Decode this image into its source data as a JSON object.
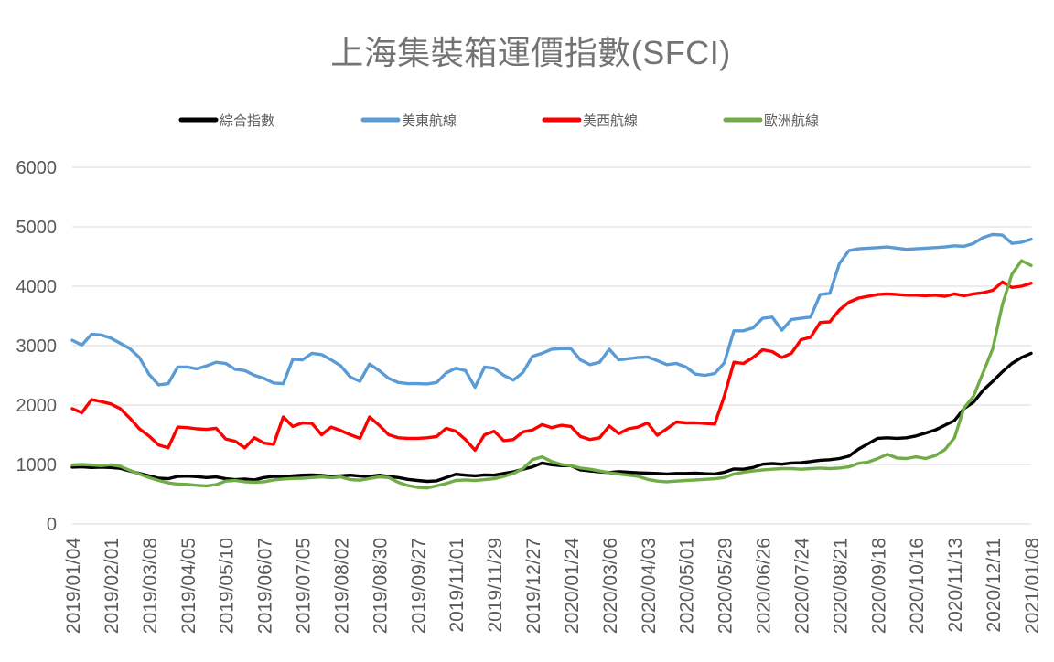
{
  "page": {
    "background": "#FFFFFF"
  },
  "chart_data": {
    "type": "line",
    "title": "上海集裝箱運價指數(SFCI)",
    "legend_position": "top",
    "grid": "horizontal-only",
    "ylim": [
      0,
      6000
    ],
    "y_ticks": [
      0,
      1000,
      2000,
      3000,
      4000,
      5000,
      6000
    ],
    "x_tick_labels": [
      "2019/01/04",
      "2019/02/01",
      "2019/03/08",
      "2019/04/05",
      "2019/05/10",
      "2019/06/07",
      "2019/07/05",
      "2019/08/02",
      "2019/08/30",
      "2019/09/27",
      "2019/11/01",
      "2019/11/29",
      "2019/12/27",
      "2020/01/24",
      "2020/03/06",
      "2020/04/03",
      "2020/05/01",
      "2020/05/29",
      "2020/06/26",
      "2020/07/24",
      "2020/08/21",
      "2020/09/18",
      "2020/10/16",
      "2020/11/13",
      "2020/12/11",
      "2021/01/08"
    ],
    "points_per_tick_gap": 4,
    "colors": {
      "grid": "#D9D9D9",
      "axis_text": "#595959",
      "title_text": "#737373"
    },
    "series": [
      {
        "name": "綜合指數",
        "color": "#000000",
        "values": [
          955,
          960,
          950,
          955,
          950,
          935,
          890,
          850,
          810,
          770,
          760,
          800,
          805,
          795,
          780,
          790,
          760,
          745,
          755,
          740,
          780,
          800,
          795,
          810,
          820,
          825,
          815,
          800,
          810,
          820,
          805,
          800,
          820,
          800,
          780,
          750,
          730,
          715,
          725,
          780,
          835,
          820,
          810,
          825,
          820,
          850,
          875,
          920,
          960,
          1025,
          995,
          980,
          980,
          910,
          890,
          875,
          865,
          880,
          870,
          860,
          855,
          850,
          840,
          850,
          850,
          855,
          845,
          840,
          870,
          925,
          920,
          950,
          1005,
          1015,
          1005,
          1025,
          1030,
          1050,
          1070,
          1080,
          1100,
          1140,
          1260,
          1350,
          1440,
          1450,
          1440,
          1450,
          1480,
          1530,
          1580,
          1660,
          1740,
          1940,
          2050,
          2250,
          2400,
          2560,
          2700,
          2800,
          2870
        ]
      },
      {
        "name": "美東航線",
        "color": "#5B9BD5",
        "values": [
          3090,
          3010,
          3190,
          3180,
          3130,
          3040,
          2950,
          2800,
          2520,
          2340,
          2360,
          2640,
          2640,
          2610,
          2660,
          2720,
          2700,
          2600,
          2580,
          2500,
          2450,
          2370,
          2360,
          2770,
          2760,
          2870,
          2850,
          2760,
          2660,
          2470,
          2400,
          2690,
          2580,
          2450,
          2380,
          2360,
          2360,
          2355,
          2380,
          2540,
          2620,
          2580,
          2300,
          2640,
          2620,
          2500,
          2420,
          2550,
          2820,
          2870,
          2940,
          2950,
          2950,
          2760,
          2680,
          2720,
          2940,
          2760,
          2780,
          2800,
          2810,
          2750,
          2680,
          2700,
          2640,
          2520,
          2500,
          2530,
          2710,
          3250,
          3250,
          3300,
          3460,
          3480,
          3260,
          3440,
          3460,
          3480,
          3860,
          3880,
          4380,
          4600,
          4630,
          4640,
          4650,
          4660,
          4640,
          4620,
          4630,
          4640,
          4650,
          4660,
          4680,
          4670,
          4720,
          4820,
          4870,
          4860,
          4720,
          4740,
          4790
        ]
      },
      {
        "name": "美西航線",
        "color": "#FF0000",
        "values": [
          1940,
          1870,
          2090,
          2060,
          2020,
          1940,
          1780,
          1600,
          1480,
          1330,
          1280,
          1630,
          1620,
          1600,
          1590,
          1610,
          1430,
          1390,
          1280,
          1450,
          1360,
          1340,
          1800,
          1640,
          1700,
          1690,
          1500,
          1630,
          1570,
          1500,
          1440,
          1800,
          1660,
          1500,
          1450,
          1440,
          1440,
          1450,
          1470,
          1610,
          1560,
          1420,
          1240,
          1500,
          1560,
          1400,
          1420,
          1550,
          1580,
          1670,
          1620,
          1660,
          1640,
          1470,
          1420,
          1450,
          1650,
          1520,
          1600,
          1630,
          1700,
          1490,
          1600,
          1715,
          1700,
          1700,
          1690,
          1680,
          2150,
          2720,
          2700,
          2800,
          2930,
          2900,
          2800,
          2870,
          3100,
          3140,
          3390,
          3400,
          3600,
          3730,
          3800,
          3830,
          3860,
          3870,
          3860,
          3850,
          3850,
          3840,
          3850,
          3830,
          3870,
          3840,
          3870,
          3890,
          3930,
          4070,
          3980,
          4000,
          4050
        ]
      },
      {
        "name": "歐洲航線",
        "color": "#70AD47",
        "values": [
          990,
          1000,
          990,
          980,
          995,
          970,
          900,
          840,
          780,
          730,
          690,
          670,
          665,
          650,
          640,
          660,
          720,
          730,
          710,
          700,
          710,
          740,
          755,
          765,
          770,
          780,
          790,
          775,
          790,
          745,
          735,
          765,
          790,
          780,
          700,
          645,
          615,
          605,
          640,
          680,
          730,
          740,
          730,
          745,
          760,
          800,
          850,
          930,
          1080,
          1130,
          1050,
          1000,
          980,
          940,
          920,
          890,
          860,
          840,
          820,
          800,
          750,
          720,
          710,
          720,
          730,
          740,
          750,
          760,
          780,
          840,
          870,
          890,
          910,
          920,
          930,
          930,
          920,
          930,
          940,
          930,
          940,
          960,
          1020,
          1040,
          1100,
          1170,
          1110,
          1100,
          1130,
          1100,
          1150,
          1250,
          1450,
          1950,
          2150,
          2550,
          2950,
          3690,
          4200,
          4430,
          4350
        ]
      }
    ]
  }
}
